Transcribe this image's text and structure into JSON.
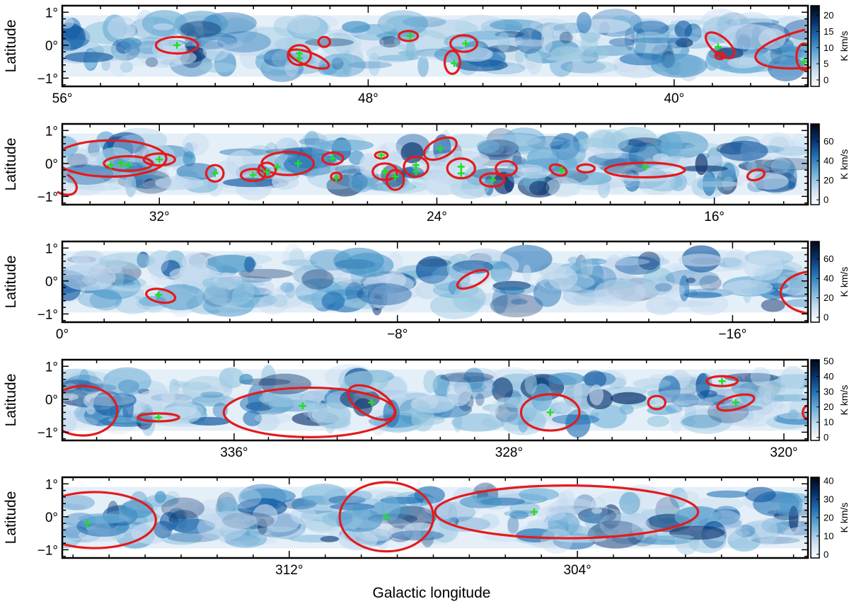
{
  "figure": {
    "x_axis_title": "Galactic longitude",
    "y_axis_title": "Latitude",
    "colormap": [
      "#ffffff",
      "#c6dbef",
      "#6baed6",
      "#2171b5",
      "#08306b",
      "#000814"
    ],
    "ellipse_color": "#e41a1c",
    "marker_color": "#22dd22"
  },
  "chart_data": [
    {
      "type": "heatmap",
      "xlabel": "",
      "ylabel": "Latitude",
      "xlim": [
        56,
        36.5
      ],
      "ylim": [
        -1.25,
        1.2
      ],
      "x_ticks": [
        56,
        48,
        40
      ],
      "x_tick_labels": [
        "56°",
        "48°",
        "40°"
      ],
      "y_tick_labels": [
        "1°",
        "0°",
        "−1°"
      ],
      "colorbar": {
        "label": "K km/s",
        "range": [
          -2,
          23
        ],
        "ticks": [
          0,
          5,
          10,
          15,
          20
        ]
      },
      "ellipses": [
        {
          "l": 53.0,
          "b": 0.0,
          "a": 0.55,
          "h": 0.25,
          "angle": 0
        },
        {
          "l": 49.55,
          "b": -0.42,
          "a": 0.55,
          "h": 0.2,
          "angle": -20
        },
        {
          "l": 49.8,
          "b": -0.3,
          "a": 0.3,
          "h": 0.3,
          "angle": 0
        },
        {
          "l": 49.15,
          "b": 0.1,
          "a": 0.15,
          "h": 0.15,
          "angle": 0
        },
        {
          "l": 46.95,
          "b": 0.28,
          "a": 0.25,
          "h": 0.15,
          "angle": 0
        },
        {
          "l": 45.5,
          "b": 0.05,
          "a": 0.35,
          "h": 0.25,
          "angle": 0
        },
        {
          "l": 45.8,
          "b": -0.52,
          "a": 0.2,
          "h": 0.35,
          "angle": 0
        },
        {
          "l": 38.8,
          "b": 0.0,
          "a": 0.45,
          "h": 0.25,
          "angle": -40
        },
        {
          "l": 38.8,
          "b": -0.32,
          "a": 0.12,
          "h": 0.1,
          "angle": 0
        },
        {
          "l": 36.0,
          "b": 0.0,
          "a": 1.9,
          "h": 0.6,
          "angle": 10
        },
        {
          "l": 36.6,
          "b": -0.35,
          "a": 0.2,
          "h": 0.4,
          "angle": 0
        }
      ],
      "markers": [
        {
          "l": 53.0,
          "b": 0.0
        },
        {
          "l": 49.8,
          "b": -0.25
        },
        {
          "l": 49.8,
          "b": -0.4
        },
        {
          "l": 46.9,
          "b": 0.28
        },
        {
          "l": 45.45,
          "b": 0.05
        },
        {
          "l": 45.75,
          "b": -0.55
        },
        {
          "l": 38.85,
          "b": -0.05
        },
        {
          "l": 36.5,
          "b": 0.0
        },
        {
          "l": 36.6,
          "b": -0.5
        }
      ]
    },
    {
      "type": "heatmap",
      "xlabel": "",
      "ylabel": "Latitude",
      "xlim": [
        34.8,
        13.3
      ],
      "ylim": [
        -1.25,
        1.2
      ],
      "x_ticks": [
        32,
        24,
        16
      ],
      "x_tick_labels": [
        "32°",
        "24°",
        "16°"
      ],
      "y_tick_labels": [
        "1°",
        "0°",
        "−1°"
      ],
      "colorbar": {
        "label": "K km/s",
        "range": [
          -5,
          78
        ],
        "ticks": [
          0,
          20,
          40,
          60
        ]
      },
      "ellipses": [
        {
          "l": 33.4,
          "b": 0.15,
          "a": 1.6,
          "h": 0.55,
          "angle": 0
        },
        {
          "l": 34.8,
          "b": -0.6,
          "a": 0.45,
          "h": 0.3,
          "angle": -30
        },
        {
          "l": 32.9,
          "b": 0.0,
          "a": 0.7,
          "h": 0.22,
          "angle": 0
        },
        {
          "l": 32.0,
          "b": 0.12,
          "a": 0.45,
          "h": 0.18,
          "angle": 0
        },
        {
          "l": 30.4,
          "b": -0.3,
          "a": 0.25,
          "h": 0.25,
          "angle": 0
        },
        {
          "l": 29.3,
          "b": -0.35,
          "a": 0.35,
          "h": 0.18,
          "angle": 0
        },
        {
          "l": 28.9,
          "b": -0.2,
          "a": 0.25,
          "h": 0.22,
          "angle": 0
        },
        {
          "l": 28.3,
          "b": 0.0,
          "a": 0.75,
          "h": 0.35,
          "angle": 0
        },
        {
          "l": 27.0,
          "b": 0.15,
          "a": 0.3,
          "h": 0.18,
          "angle": 0
        },
        {
          "l": 26.9,
          "b": -0.4,
          "a": 0.15,
          "h": 0.12,
          "angle": 0
        },
        {
          "l": 25.6,
          "b": 0.25,
          "a": 0.18,
          "h": 0.1,
          "angle": 0
        },
        {
          "l": 25.5,
          "b": -0.25,
          "a": 0.35,
          "h": 0.25,
          "angle": 0
        },
        {
          "l": 25.2,
          "b": -0.5,
          "a": 0.25,
          "h": 0.3,
          "angle": 0
        },
        {
          "l": 24.6,
          "b": -0.1,
          "a": 0.35,
          "h": 0.3,
          "angle": 0
        },
        {
          "l": 23.9,
          "b": 0.45,
          "a": 0.5,
          "h": 0.28,
          "angle": 25
        },
        {
          "l": 23.3,
          "b": -0.15,
          "a": 0.4,
          "h": 0.3,
          "angle": 0
        },
        {
          "l": 22.4,
          "b": -0.5,
          "a": 0.35,
          "h": 0.2,
          "angle": 0
        },
        {
          "l": 22.0,
          "b": -0.15,
          "a": 0.3,
          "h": 0.22,
          "angle": 0
        },
        {
          "l": 20.5,
          "b": -0.2,
          "a": 0.25,
          "h": 0.15,
          "angle": -20
        },
        {
          "l": 19.7,
          "b": -0.15,
          "a": 0.25,
          "h": 0.12,
          "angle": 0
        },
        {
          "l": 18.0,
          "b": -0.2,
          "a": 1.15,
          "h": 0.22,
          "angle": 0
        },
        {
          "l": 14.8,
          "b": -0.35,
          "a": 0.25,
          "h": 0.15,
          "angle": 15
        }
      ],
      "markers": [
        {
          "l": 33.4,
          "b": -0.05
        },
        {
          "l": 33.1,
          "b": 0.0
        },
        {
          "l": 32.9,
          "b": -0.05
        },
        {
          "l": 32.0,
          "b": 0.12
        },
        {
          "l": 30.4,
          "b": -0.3
        },
        {
          "l": 29.3,
          "b": -0.35
        },
        {
          "l": 28.9,
          "b": -0.25
        },
        {
          "l": 28.6,
          "b": -0.1
        },
        {
          "l": 28.0,
          "b": 0.0
        },
        {
          "l": 27.0,
          "b": 0.15
        },
        {
          "l": 26.9,
          "b": -0.45
        },
        {
          "l": 25.6,
          "b": 0.25
        },
        {
          "l": 25.5,
          "b": -0.25
        },
        {
          "l": 25.2,
          "b": -0.4
        },
        {
          "l": 24.6,
          "b": -0.05
        },
        {
          "l": 24.6,
          "b": -0.25
        },
        {
          "l": 23.9,
          "b": 0.45
        },
        {
          "l": 23.3,
          "b": -0.1
        },
        {
          "l": 23.3,
          "b": -0.3
        },
        {
          "l": 22.4,
          "b": -0.5
        },
        {
          "l": 20.4,
          "b": -0.2
        },
        {
          "l": 18.0,
          "b": -0.1
        }
      ]
    },
    {
      "type": "heatmap",
      "xlabel": "",
      "ylabel": "Latitude",
      "xlim": [
        0,
        -17.8
      ],
      "ylim": [
        -1.25,
        1.2
      ],
      "x_ticks": [
        0,
        -8,
        -16
      ],
      "x_tick_labels": [
        "0°",
        "−8°",
        "−16°"
      ],
      "y_tick_labels": [
        "1°",
        "0°",
        "−1°"
      ],
      "colorbar": {
        "label": "K km/s",
        "range": [
          -5,
          78
        ],
        "ticks": [
          0,
          20,
          40,
          60
        ]
      },
      "ellipses": [
        {
          "l": -2.35,
          "b": -0.45,
          "a": 0.35,
          "h": 0.2,
          "angle": -10
        },
        {
          "l": -9.8,
          "b": 0.05,
          "a": 0.4,
          "h": 0.2,
          "angle": 25
        },
        {
          "l": -18.0,
          "b": -0.35,
          "a": 0.85,
          "h": 0.65,
          "angle": 0
        }
      ],
      "markers": [
        {
          "l": -2.3,
          "b": -0.42
        },
        {
          "l": -17.85,
          "b": -0.25
        }
      ]
    },
    {
      "type": "heatmap",
      "xlabel": "",
      "ylabel": "Latitude",
      "xlim": [
        341.0,
        319.3
      ],
      "ylim": [
        -1.25,
        1.2
      ],
      "x_ticks": [
        336,
        328,
        320
      ],
      "x_tick_labels": [
        "336°",
        "328°",
        "320°"
      ],
      "y_tick_labels": [
        "1°",
        "0°",
        "−1°"
      ],
      "colorbar": {
        "label": "K km/s",
        "range": [
          -2,
          51
        ],
        "ticks": [
          0,
          10,
          20,
          30,
          40,
          50
        ]
      },
      "ellipses": [
        {
          "l": 340.4,
          "b": -0.35,
          "a": 1.0,
          "h": 0.75,
          "angle": 0
        },
        {
          "l": 338.2,
          "b": -0.55,
          "a": 0.6,
          "h": 0.12,
          "angle": 0
        },
        {
          "l": 333.8,
          "b": -0.4,
          "a": 2.5,
          "h": 0.75,
          "angle": 0
        },
        {
          "l": 332.0,
          "b": -0.1,
          "a": 0.75,
          "h": 0.4,
          "angle": -30
        },
        {
          "l": 326.8,
          "b": -0.4,
          "a": 0.85,
          "h": 0.55,
          "angle": 0
        },
        {
          "l": 323.7,
          "b": -0.1,
          "a": 0.25,
          "h": 0.2,
          "angle": 0
        },
        {
          "l": 321.8,
          "b": 0.55,
          "a": 0.45,
          "h": 0.15,
          "angle": 0
        },
        {
          "l": 321.4,
          "b": -0.1,
          "a": 0.55,
          "h": 0.2,
          "angle": 15
        },
        {
          "l": 319.3,
          "b": -0.4,
          "a": 0.15,
          "h": 0.2,
          "angle": 0
        }
      ],
      "markers": [
        {
          "l": 338.2,
          "b": -0.55
        },
        {
          "l": 334.0,
          "b": -0.2
        },
        {
          "l": 332.0,
          "b": -0.1
        },
        {
          "l": 326.8,
          "b": -0.4
        },
        {
          "l": 321.8,
          "b": 0.55
        },
        {
          "l": 321.4,
          "b": -0.1
        }
      ]
    },
    {
      "type": "heatmap",
      "xlabel": "Galactic longitude",
      "ylabel": "Latitude",
      "xlim": [
        318.3,
        297.6
      ],
      "ylim": [
        -1.25,
        1.2
      ],
      "x_ticks": [
        312,
        304
      ],
      "x_tick_labels": [
        "312°",
        "304°"
      ],
      "y_tick_labels": [
        "1°",
        "0°",
        "−1°"
      ],
      "colorbar": {
        "label": "K km/s",
        "range": [
          -2,
          42
        ],
        "ticks": [
          0,
          10,
          20,
          30,
          40
        ]
      },
      "ellipses": [
        {
          "l": 317.4,
          "b": -0.1,
          "a": 1.7,
          "h": 0.85,
          "angle": 0
        },
        {
          "l": 309.3,
          "b": 0.0,
          "a": 1.3,
          "h": 1.05,
          "angle": 0
        },
        {
          "l": 304.3,
          "b": 0.15,
          "a": 3.65,
          "h": 0.8,
          "angle": 0
        }
      ],
      "markers": [
        {
          "l": 317.6,
          "b": -0.2
        },
        {
          "l": 309.3,
          "b": 0.0
        },
        {
          "l": 305.2,
          "b": 0.15
        }
      ]
    }
  ]
}
